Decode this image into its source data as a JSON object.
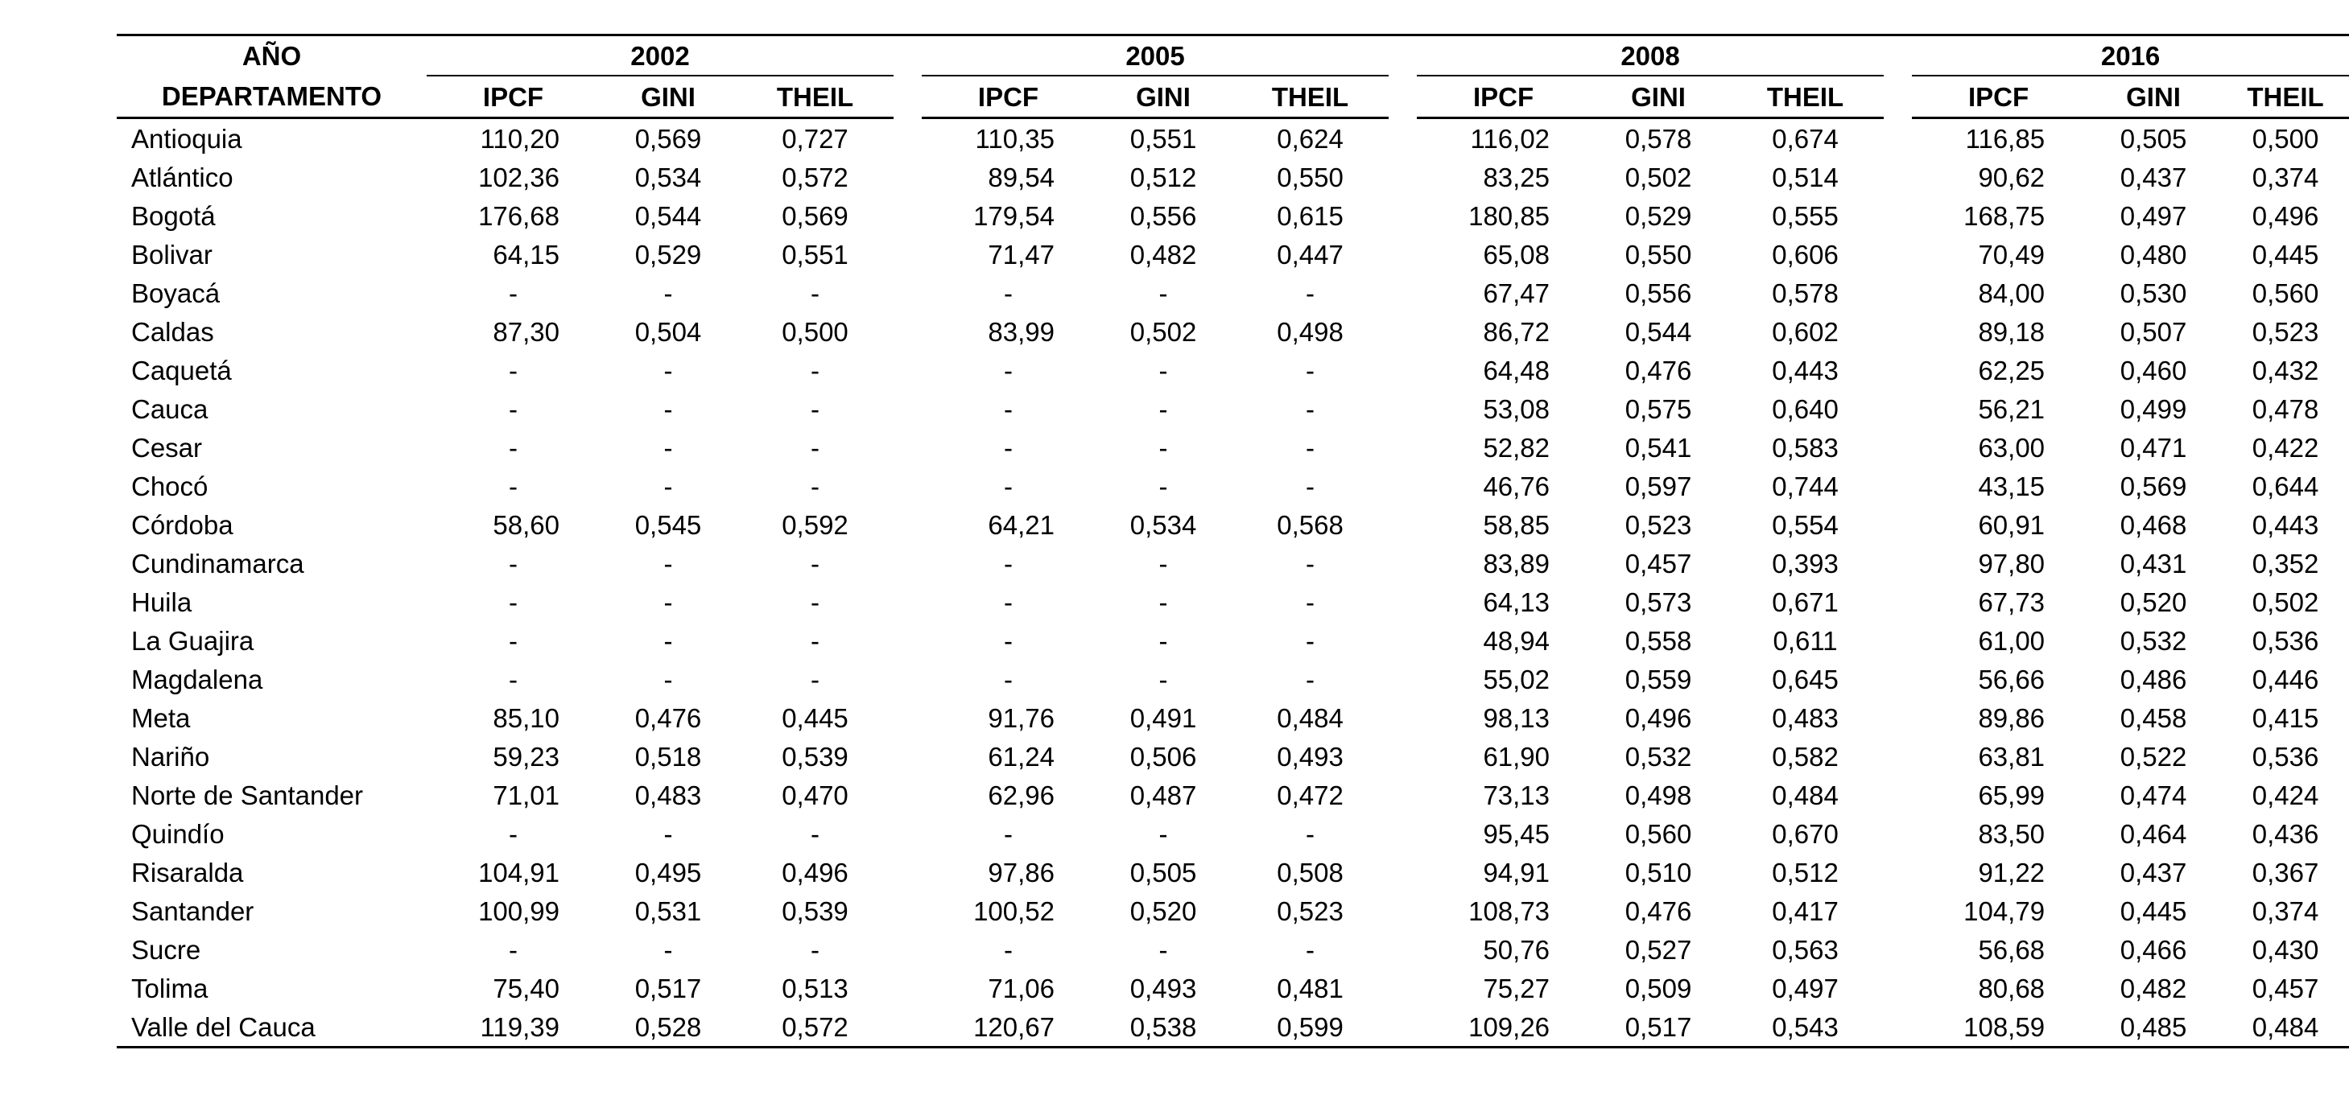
{
  "chart_data": {
    "type": "table",
    "corner": {
      "top": "AÑO",
      "bottom": "DEPARTAMENTO"
    },
    "year_groups": [
      "2002",
      "2005",
      "2008",
      "2016"
    ],
    "metrics": [
      "IPCF",
      "GINI",
      "THEIL"
    ],
    "missing_marker": "-",
    "rows": [
      {
        "department": "Antioquia",
        "values": [
          "110,20",
          "0,569",
          "0,727",
          "110,35",
          "0,551",
          "0,624",
          "116,02",
          "0,578",
          "0,674",
          "116,85",
          "0,505",
          "0,500"
        ]
      },
      {
        "department": "Atlántico",
        "values": [
          "102,36",
          "0,534",
          "0,572",
          "89,54",
          "0,512",
          "0,550",
          "83,25",
          "0,502",
          "0,514",
          "90,62",
          "0,437",
          "0,374"
        ]
      },
      {
        "department": "Bogotá",
        "values": [
          "176,68",
          "0,544",
          "0,569",
          "179,54",
          "0,556",
          "0,615",
          "180,85",
          "0,529",
          "0,555",
          "168,75",
          "0,497",
          "0,496"
        ]
      },
      {
        "department": "Bolivar",
        "values": [
          "64,15",
          "0,529",
          "0,551",
          "71,47",
          "0,482",
          "0,447",
          "65,08",
          "0,550",
          "0,606",
          "70,49",
          "0,480",
          "0,445"
        ]
      },
      {
        "department": "Boyacá",
        "values": [
          "-",
          "-",
          "-",
          "-",
          "-",
          "-",
          "67,47",
          "0,556",
          "0,578",
          "84,00",
          "0,530",
          "0,560"
        ]
      },
      {
        "department": "Caldas",
        "values": [
          "87,30",
          "0,504",
          "0,500",
          "83,99",
          "0,502",
          "0,498",
          "86,72",
          "0,544",
          "0,602",
          "89,18",
          "0,507",
          "0,523"
        ]
      },
      {
        "department": "Caquetá",
        "values": [
          "-",
          "-",
          "-",
          "-",
          "-",
          "-",
          "64,48",
          "0,476",
          "0,443",
          "62,25",
          "0,460",
          "0,432"
        ]
      },
      {
        "department": "Cauca",
        "values": [
          "-",
          "-",
          "-",
          "-",
          "-",
          "-",
          "53,08",
          "0,575",
          "0,640",
          "56,21",
          "0,499",
          "0,478"
        ]
      },
      {
        "department": "Cesar",
        "values": [
          "-",
          "-",
          "-",
          "-",
          "-",
          "-",
          "52,82",
          "0,541",
          "0,583",
          "63,00",
          "0,471",
          "0,422"
        ]
      },
      {
        "department": "Chocó",
        "values": [
          "-",
          "-",
          "-",
          "-",
          "-",
          "-",
          "46,76",
          "0,597",
          "0,744",
          "43,15",
          "0,569",
          "0,644"
        ]
      },
      {
        "department": "Córdoba",
        "values": [
          "58,60",
          "0,545",
          "0,592",
          "64,21",
          "0,534",
          "0,568",
          "58,85",
          "0,523",
          "0,554",
          "60,91",
          "0,468",
          "0,443"
        ]
      },
      {
        "department": "Cundinamarca",
        "values": [
          "-",
          "-",
          "-",
          "-",
          "-",
          "-",
          "83,89",
          "0,457",
          "0,393",
          "97,80",
          "0,431",
          "0,352"
        ]
      },
      {
        "department": "Huila",
        "values": [
          "-",
          "-",
          "-",
          "-",
          "-",
          "-",
          "64,13",
          "0,573",
          "0,671",
          "67,73",
          "0,520",
          "0,502"
        ]
      },
      {
        "department": "La Guajira",
        "values": [
          "-",
          "-",
          "-",
          "-",
          "-",
          "-",
          "48,94",
          "0,558",
          "0,611",
          "61,00",
          "0,532",
          "0,536"
        ]
      },
      {
        "department": "Magdalena",
        "values": [
          "-",
          "-",
          "-",
          "-",
          "-",
          "-",
          "55,02",
          "0,559",
          "0,645",
          "56,66",
          "0,486",
          "0,446"
        ]
      },
      {
        "department": "Meta",
        "values": [
          "85,10",
          "0,476",
          "0,445",
          "91,76",
          "0,491",
          "0,484",
          "98,13",
          "0,496",
          "0,483",
          "89,86",
          "0,458",
          "0,415"
        ]
      },
      {
        "department": "Nariño",
        "values": [
          "59,23",
          "0,518",
          "0,539",
          "61,24",
          "0,506",
          "0,493",
          "61,90",
          "0,532",
          "0,582",
          "63,81",
          "0,522",
          "0,536"
        ]
      },
      {
        "department": "Norte de Santander",
        "values": [
          "71,01",
          "0,483",
          "0,470",
          "62,96",
          "0,487",
          "0,472",
          "73,13",
          "0,498",
          "0,484",
          "65,99",
          "0,474",
          "0,424"
        ]
      },
      {
        "department": "Quindío",
        "values": [
          "-",
          "-",
          "-",
          "-",
          "-",
          "-",
          "95,45",
          "0,560",
          "0,670",
          "83,50",
          "0,464",
          "0,436"
        ]
      },
      {
        "department": "Risaralda",
        "values": [
          "104,91",
          "0,495",
          "0,496",
          "97,86",
          "0,505",
          "0,508",
          "94,91",
          "0,510",
          "0,512",
          "91,22",
          "0,437",
          "0,367"
        ]
      },
      {
        "department": "Santander",
        "values": [
          "100,99",
          "0,531",
          "0,539",
          "100,52",
          "0,520",
          "0,523",
          "108,73",
          "0,476",
          "0,417",
          "104,79",
          "0,445",
          "0,374"
        ]
      },
      {
        "department": "Sucre",
        "values": [
          "-",
          "-",
          "-",
          "-",
          "-",
          "-",
          "50,76",
          "0,527",
          "0,563",
          "56,68",
          "0,466",
          "0,430"
        ]
      },
      {
        "department": "Tolima",
        "values": [
          "75,40",
          "0,517",
          "0,513",
          "71,06",
          "0,493",
          "0,481",
          "75,27",
          "0,509",
          "0,497",
          "80,68",
          "0,482",
          "0,457"
        ]
      },
      {
        "department": "Valle del Cauca",
        "values": [
          "119,39",
          "0,528",
          "0,572",
          "120,67",
          "0,538",
          "0,599",
          "109,26",
          "0,517",
          "0,543",
          "108,59",
          "0,485",
          "0,484"
        ]
      }
    ]
  }
}
